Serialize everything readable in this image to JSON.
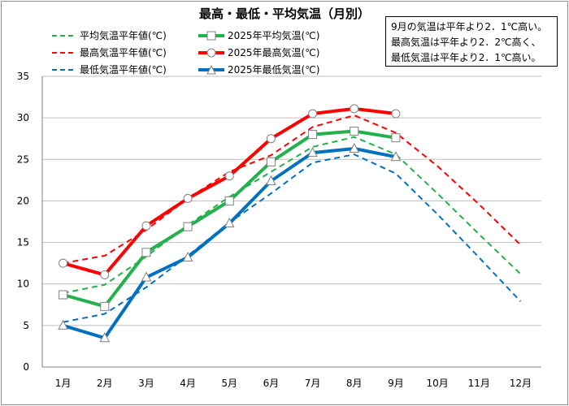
{
  "title": "最高・最低・平均気温（月別）",
  "note": [
    "9月の気温は平年より2．1℃高い。",
    "最高気温は平年より2．2℃高く、",
    "最低気温は平年より2．1℃高い。"
  ],
  "chart_data": {
    "type": "line",
    "title": "最高・最低・平均気温（月別）",
    "categories": [
      "1月",
      "2月",
      "3月",
      "4月",
      "5月",
      "6月",
      "7月",
      "8月",
      "9月",
      "10月",
      "11月",
      "12月"
    ],
    "ylim": [
      0,
      35
    ],
    "yticks": [
      0,
      5,
      10,
      15,
      20,
      25,
      30,
      35
    ],
    "grid": true,
    "legend_position": "top-left",
    "series": [
      {
        "name": "平均気温平年値(℃)",
        "color": "#22b14c",
        "style": "dashed",
        "marker": "none",
        "values": [
          8.9,
          9.9,
          13.3,
          17.1,
          20.5,
          23.5,
          26.5,
          27.7,
          25.6,
          20.9,
          16.0,
          11.2
        ]
      },
      {
        "name": "2025年平均気温(℃)",
        "color": "#22b14c",
        "style": "solid",
        "marker": "square",
        "values": [
          8.7,
          7.3,
          13.8,
          16.9,
          20.0,
          24.7,
          28.0,
          28.4,
          27.6,
          null,
          null,
          null
        ]
      },
      {
        "name": "最高気温平年値(℃)",
        "color": "#ff0000",
        "style": "dashed",
        "marker": "none",
        "values": [
          12.5,
          13.4,
          16.5,
          20.3,
          23.5,
          25.5,
          28.9,
          30.3,
          28.2,
          24.2,
          19.6,
          14.7
        ]
      },
      {
        "name": "2025年最高気温(℃)",
        "color": "#ff0000",
        "style": "solid",
        "marker": "circle",
        "values": [
          12.5,
          11.1,
          17.0,
          20.3,
          23.0,
          27.5,
          30.5,
          31.1,
          30.5,
          null,
          null,
          null
        ]
      },
      {
        "name": "最低気温平年値(℃)",
        "color": "#0070c0",
        "style": "dashed",
        "marker": "none",
        "values": [
          5.4,
          6.4,
          9.6,
          13.4,
          17.4,
          20.9,
          24.6,
          25.6,
          23.3,
          18.4,
          13.2,
          7.9
        ]
      },
      {
        "name": "2025年最低気温(℃)",
        "color": "#0070c0",
        "style": "solid",
        "marker": "triangle",
        "values": [
          5.0,
          3.5,
          10.8,
          13.2,
          17.3,
          22.4,
          25.8,
          26.3,
          25.3,
          null,
          null,
          null
        ]
      }
    ]
  }
}
